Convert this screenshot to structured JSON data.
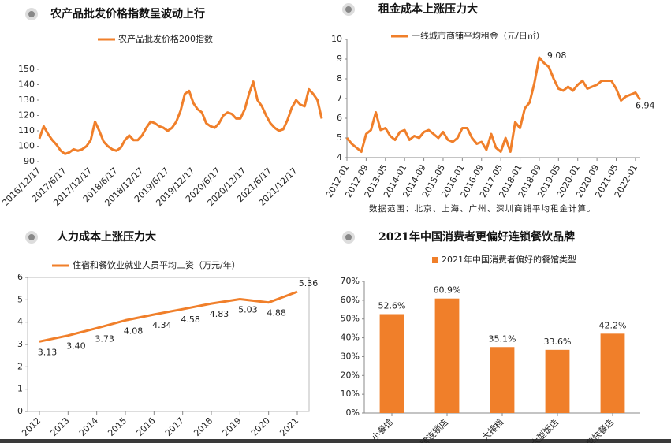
{
  "chart_data": [
    {
      "type": "line",
      "title": "农产品批发价格指数呈波动上行",
      "categories": [
        "2016/12/17",
        null,
        null,
        null,
        null,
        null,
        "2017/6/17",
        null,
        null,
        null,
        null,
        null,
        "2017/12/17",
        null,
        null,
        null,
        null,
        null,
        "2018/6/17",
        null,
        null,
        null,
        null,
        null,
        "2018/12/17",
        null,
        null,
        null,
        null,
        null,
        "2019/6/17",
        null,
        null,
        null,
        null,
        null,
        "2019/12/17",
        null,
        null,
        null,
        null,
        null,
        "2020/6/17",
        null,
        null,
        null,
        null,
        null,
        "2020/12/17",
        null,
        null,
        null,
        null,
        null,
        "2021/6/17",
        null,
        null,
        null,
        null,
        null,
        "2021/12/17",
        null,
        null,
        null,
        null,
        null,
        null
      ],
      "series": [
        {
          "name": "农产品批发价格200指数",
          "color": "#f07f2a",
          "values": [
            105,
            113,
            108,
            104,
            101,
            97,
            95,
            96,
            98,
            97,
            98,
            100,
            104,
            116,
            110,
            103,
            100,
            98,
            97,
            99,
            104,
            107,
            104,
            104,
            107,
            112,
            116,
            115,
            113,
            112,
            110,
            112,
            116,
            123,
            134,
            136,
            128,
            124,
            122,
            115,
            113,
            112,
            115,
            120,
            122,
            121,
            118,
            118,
            124,
            134,
            142,
            130,
            126,
            120,
            115,
            112,
            110,
            111,
            117,
            125,
            130,
            127,
            126,
            137,
            134,
            130,
            118
          ]
        }
      ],
      "ylim": [
        90,
        150
      ],
      "yticks": [
        90,
        100,
        110,
        120,
        130,
        140,
        150
      ]
    },
    {
      "type": "line",
      "title": "租金成本上涨压力大",
      "categories": [
        "2012-01",
        null,
        null,
        null,
        "2012-09",
        null,
        null,
        null,
        "2013-05",
        null,
        null,
        null,
        "2014-01",
        null,
        null,
        null,
        "2014-09",
        null,
        null,
        null,
        "2015-05",
        null,
        null,
        null,
        "2016-01",
        null,
        null,
        null,
        "2016-09",
        null,
        null,
        null,
        "2017-05",
        null,
        null,
        null,
        "2018-01",
        null,
        null,
        null,
        "2018-09",
        null,
        null,
        null,
        "2019-05",
        null,
        null,
        null,
        "2020-01",
        null,
        null,
        null,
        "2020-09",
        null,
        null,
        null,
        "2021-05",
        null,
        null,
        null,
        "2022-01",
        null
      ],
      "series": [
        {
          "name": "一线城市商铺平均租金（元/日㎡）",
          "color": "#f07f2a",
          "values": [
            5.0,
            4.7,
            4.5,
            4.3,
            5.2,
            5.4,
            6.3,
            5.4,
            5.5,
            5.1,
            4.9,
            5.3,
            5.4,
            4.9,
            5.1,
            5.0,
            5.3,
            5.4,
            5.2,
            5.0,
            5.3,
            4.9,
            4.8,
            5.0,
            5.5,
            5.5,
            5.0,
            4.7,
            4.8,
            4.4,
            5.2,
            4.5,
            4.3,
            5.0,
            4.3,
            5.8,
            5.5,
            6.5,
            6.8,
            7.8,
            9.08,
            8.8,
            8.6,
            8.0,
            7.5,
            7.4,
            7.6,
            7.4,
            7.7,
            7.9,
            7.5,
            7.6,
            7.7,
            7.9,
            7.9,
            7.9,
            7.5,
            6.9,
            7.1,
            7.2,
            7.3,
            6.94
          ]
        }
      ],
      "ylim": [
        4,
        10
      ],
      "yticks": [
        4,
        5,
        6,
        7,
        8,
        9,
        10
      ],
      "note": "数据范围：北京、上海、广州、深圳商铺平均租金计算。"
    },
    {
      "type": "line",
      "title": "人力成本上涨压力大",
      "categories": [
        "2012",
        "2013",
        "2014",
        "2015",
        "2016",
        "2017",
        "2018",
        "2019",
        "2020",
        "2021"
      ],
      "series": [
        {
          "name": "住宿和餐饮业就业人员平均工资（万元/年）",
          "color": "#f07f2a",
          "values": [
            3.13,
            3.4,
            3.73,
            4.08,
            4.34,
            4.58,
            4.83,
            5.03,
            4.88,
            5.36
          ],
          "value_labels": [
            "3.13",
            "3.40",
            "3.73",
            "4.08",
            "4.34",
            "4.58",
            "4.83",
            "5.03",
            "4.88",
            "5.36"
          ]
        }
      ],
      "ylim": [
        0,
        6
      ],
      "yticks": [
        0,
        1,
        2,
        3,
        4,
        5,
        6
      ]
    },
    {
      "type": "bar",
      "title": "2021年中国消费者更偏好连锁餐饮品牌",
      "categories": [
        "小餐馆",
        "品牌连锁店",
        "大排档",
        "大型饭店",
        "小型快餐店"
      ],
      "series": [
        {
          "name": "2021年中国消费者偏好的餐馆类型",
          "color": "#f07f2a",
          "values": [
            52.6,
            60.9,
            35.1,
            33.6,
            42.2
          ],
          "value_labels": [
            "52.6%",
            "60.9%",
            "35.1%",
            "33.6%",
            "42.2%"
          ]
        }
      ],
      "ylim": [
        0,
        70
      ],
      "yticks": [
        {
          "value": 0,
          "label": "0%"
        },
        {
          "value": 10,
          "label": "10%"
        },
        {
          "value": 20,
          "label": "20%"
        },
        {
          "value": 30,
          "label": "30%"
        },
        {
          "value": 40,
          "label": "40%"
        },
        {
          "value": 50,
          "label": "50%"
        },
        {
          "value": 60,
          "label": "60%"
        },
        {
          "value": 70,
          "label": "70%"
        }
      ]
    }
  ]
}
